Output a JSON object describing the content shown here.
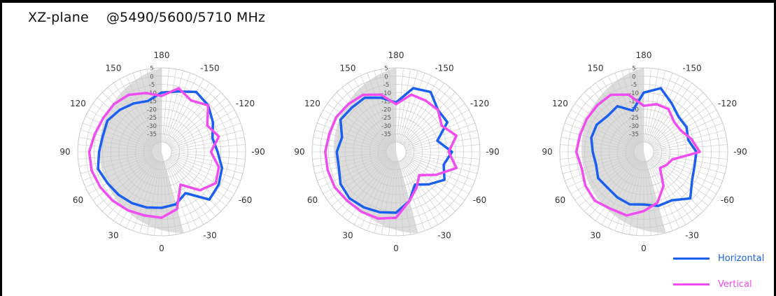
{
  "title": "XZ-plane    @5490/5600/5710 MHz",
  "colors": {
    "horizontal": "#1a5ff0",
    "vertical": "#f04cf0",
    "grid": "#c8c8c8",
    "shade": "#dcdcdc",
    "legend_text_h": "#1a5ff0",
    "legend_text_v": "#f04cf0"
  },
  "legend": [
    {
      "label": "Horizontal",
      "color": "#1a5ff0"
    },
    {
      "label": "Vertical",
      "color": "#f04cf0"
    }
  ],
  "chart_data": [
    {
      "type": "line",
      "subtype": "polar",
      "frequency": "5490 MHz",
      "angle_ticks": [
        "180",
        "150",
        "120",
        "90",
        "60",
        "30",
        "0",
        "-30",
        "-60",
        "-90",
        "-120",
        "-150"
      ],
      "radial_ticks": [
        "5",
        "0",
        "-5",
        "-10",
        "-15",
        "-20",
        "-25",
        "-30",
        "-35"
      ],
      "rlim": [
        -40,
        5
      ],
      "shaded_sector_deg": [
        -180,
        -15
      ],
      "angles_deg": [
        0,
        15,
        30,
        45,
        60,
        75,
        90,
        105,
        120,
        135,
        150,
        165,
        180,
        -165,
        -150,
        -135,
        -120,
        -105,
        -90,
        -75,
        -60,
        -45,
        -30,
        -15
      ],
      "series": [
        {
          "name": "Horizontal",
          "values": [
            -12,
            -11,
            -10,
            -9,
            -8,
            -6,
            -8,
            -9,
            -8,
            -10,
            -12,
            -14,
            -10,
            -8,
            -4,
            -6,
            -10,
            -14,
            -12,
            -8,
            -6,
            -5,
            -17,
            -13
          ]
        },
        {
          "name": "Vertical",
          "values": [
            -6,
            -6,
            -5,
            -4,
            -3,
            -2,
            -2,
            -4,
            -5,
            -5,
            -6,
            -9,
            -12,
            -6,
            -10,
            -6,
            -14,
            -10,
            -16,
            -10,
            -8,
            -13,
            -23,
            -10
          ]
        }
      ]
    },
    {
      "type": "line",
      "subtype": "polar",
      "frequency": "5600 MHz",
      "angle_ticks": [
        "180",
        "150",
        "120",
        "90",
        "60",
        "30",
        "0",
        "-30",
        "-60",
        "-90",
        "-120",
        "-150"
      ],
      "radial_ticks": [
        "5",
        "0",
        "-5",
        "-10",
        "-15",
        "-20",
        "-25",
        "-30",
        "-35"
      ],
      "rlim": [
        -40,
        5
      ],
      "shaded_sector_deg": [
        -180,
        -15
      ],
      "angles_deg": [
        0,
        15,
        30,
        45,
        60,
        75,
        90,
        105,
        120,
        135,
        150,
        165,
        180,
        -165,
        -150,
        -135,
        -120,
        -105,
        -90,
        -75,
        -60,
        -45,
        -30,
        -15
      ],
      "series": [
        {
          "name": "Horizontal",
          "values": [
            -9,
            -8,
            -7,
            -6,
            -7,
            -10,
            -10,
            -12,
            -7,
            -8,
            -8,
            -12,
            -16,
            -6,
            -4,
            -10,
            -10,
            -20,
            -12,
            -16,
            -12,
            -18,
            -23,
            -15
          ]
        },
        {
          "name": "Vertical",
          "values": [
            -6,
            -4,
            -4,
            -4,
            -3,
            -3,
            -3,
            -4,
            -4,
            -5,
            -6,
            -10,
            -17,
            -10,
            -10,
            -10,
            -14,
            -8,
            -14,
            -8,
            -18,
            -26,
            -21,
            -15
          ]
        }
      ]
    },
    {
      "type": "line",
      "subtype": "polar",
      "frequency": "5710 MHz",
      "angle_ticks": [
        "180",
        "150",
        "120",
        "90",
        "60",
        "30",
        "0",
        "-30",
        "-60",
        "-90",
        "-120",
        "-150"
      ],
      "radial_ticks": [
        "5",
        "0",
        "-5",
        "-10",
        "-15",
        "-20",
        "-25",
        "-30",
        "-35"
      ],
      "rlim": [
        -40,
        5
      ],
      "shaded_sector_deg": [
        -180,
        -15
      ],
      "angles_deg": [
        0,
        15,
        30,
        45,
        60,
        75,
        90,
        105,
        120,
        135,
        150,
        165,
        180,
        -165,
        -150,
        -135,
        -120,
        -105,
        -90,
        -75,
        -60,
        -45,
        -30,
        -15
      ],
      "series": [
        {
          "name": "Horizontal",
          "values": [
            -14,
            -13,
            -14,
            -15,
            -14,
            -16,
            -15,
            -13,
            -13,
            -15,
            -14,
            -20,
            -10,
            -6,
            -12,
            -16,
            -16,
            -18,
            -14,
            -14,
            -12,
            -6,
            -12,
            -12
          ]
        },
        {
          "name": "Vertical",
          "values": [
            -10,
            -6,
            -6,
            -4,
            -5,
            -7,
            -5,
            -6,
            -6,
            -6,
            -6,
            -10,
            -18,
            -16,
            -16,
            -20,
            -20,
            -16,
            -12,
            -28,
            -30,
            -32,
            -22,
            -14
          ]
        }
      ]
    }
  ]
}
